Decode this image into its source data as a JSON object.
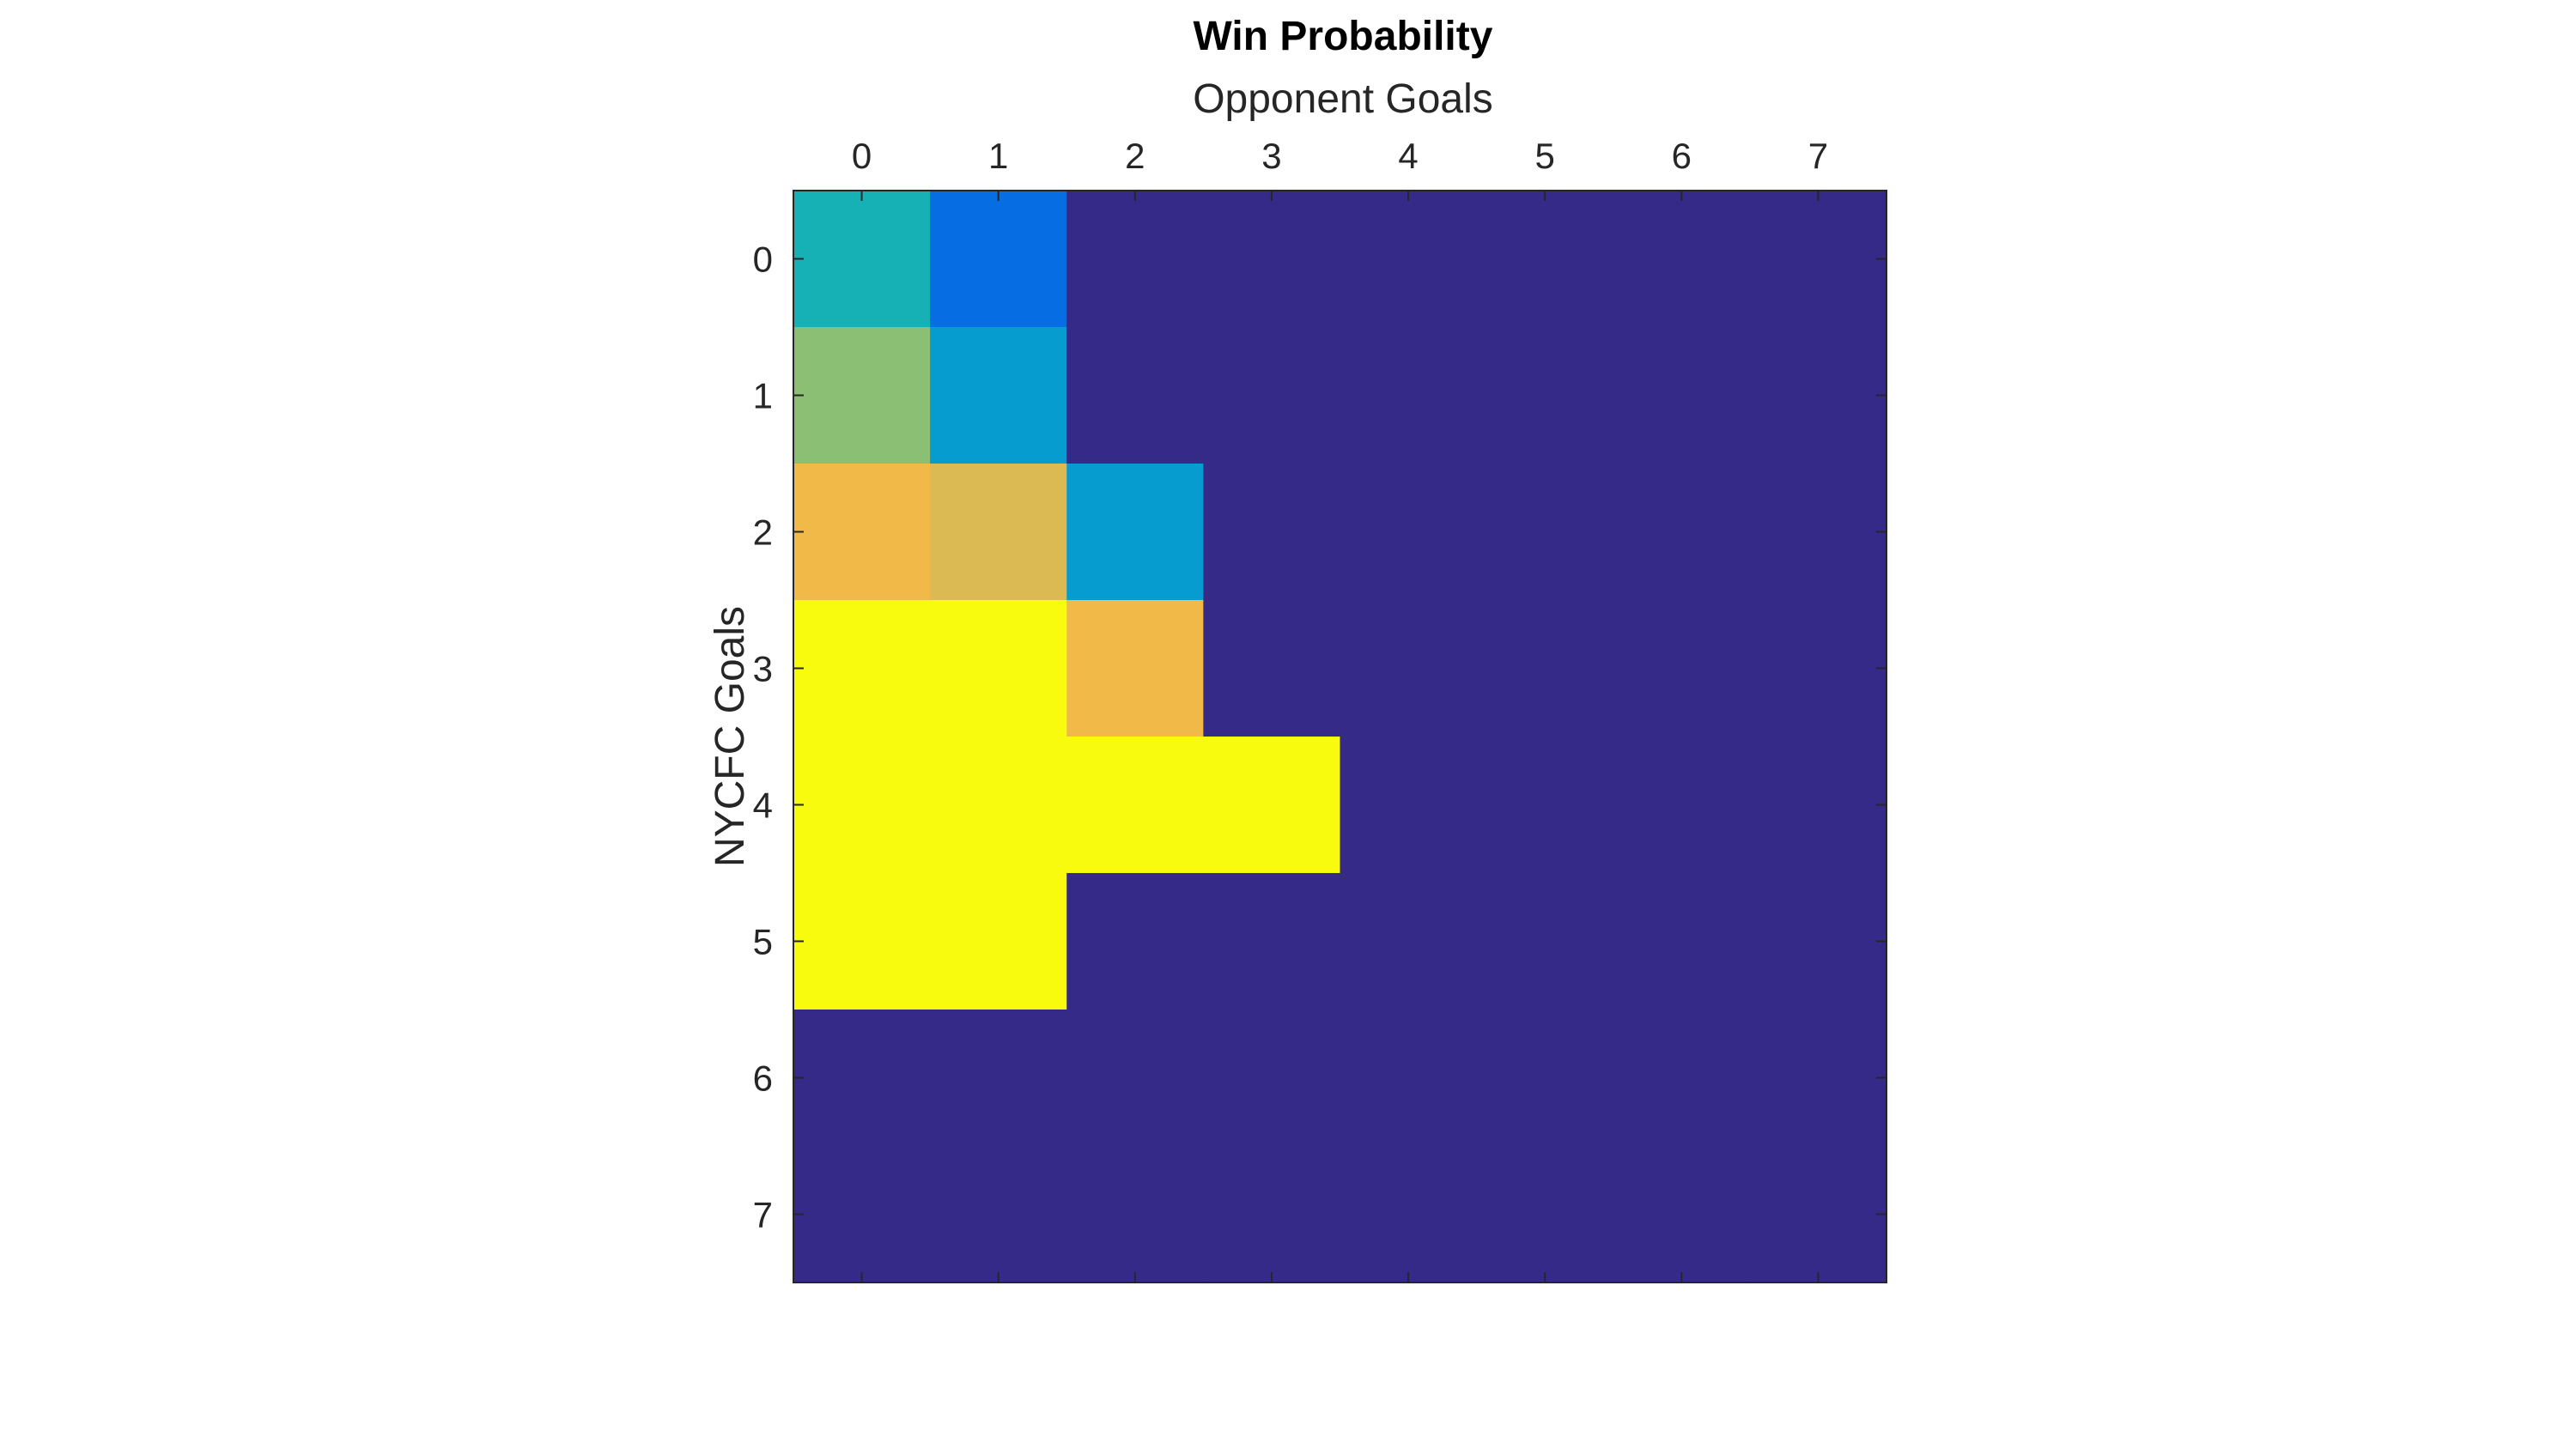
{
  "chart_data": {
    "type": "heatmap",
    "title": "Win Probability",
    "xlabel": "Opponent Goals",
    "ylabel": "NYCFC Goals",
    "x_categories": [
      "0",
      "1",
      "2",
      "3",
      "4",
      "5",
      "6",
      "7"
    ],
    "y_categories": [
      "0",
      "1",
      "2",
      "3",
      "4",
      "5",
      "6",
      "7"
    ],
    "x_axis_position": "top",
    "y_direction": "top-to-bottom",
    "grid": false,
    "legend": "none",
    "colormap": "parula",
    "clim": [
      0,
      1
    ],
    "values": [
      [
        0.45,
        0.25,
        0,
        0,
        0,
        0,
        0,
        0
      ],
      [
        0.63,
        0.38,
        0,
        0,
        0,
        0,
        0,
        0
      ],
      [
        0.85,
        0.8,
        0.38,
        0,
        0,
        0,
        0,
        0
      ],
      [
        1.0,
        1.0,
        0.85,
        0,
        0,
        0,
        0,
        0
      ],
      [
        1.0,
        1.0,
        1.0,
        1.0,
        0,
        0,
        0,
        0
      ],
      [
        1.0,
        1.0,
        0,
        0,
        0,
        0,
        0,
        0
      ],
      [
        0,
        0,
        0,
        0,
        0,
        0,
        0,
        0
      ],
      [
        0,
        0,
        0,
        0,
        0,
        0,
        0,
        0
      ]
    ]
  }
}
